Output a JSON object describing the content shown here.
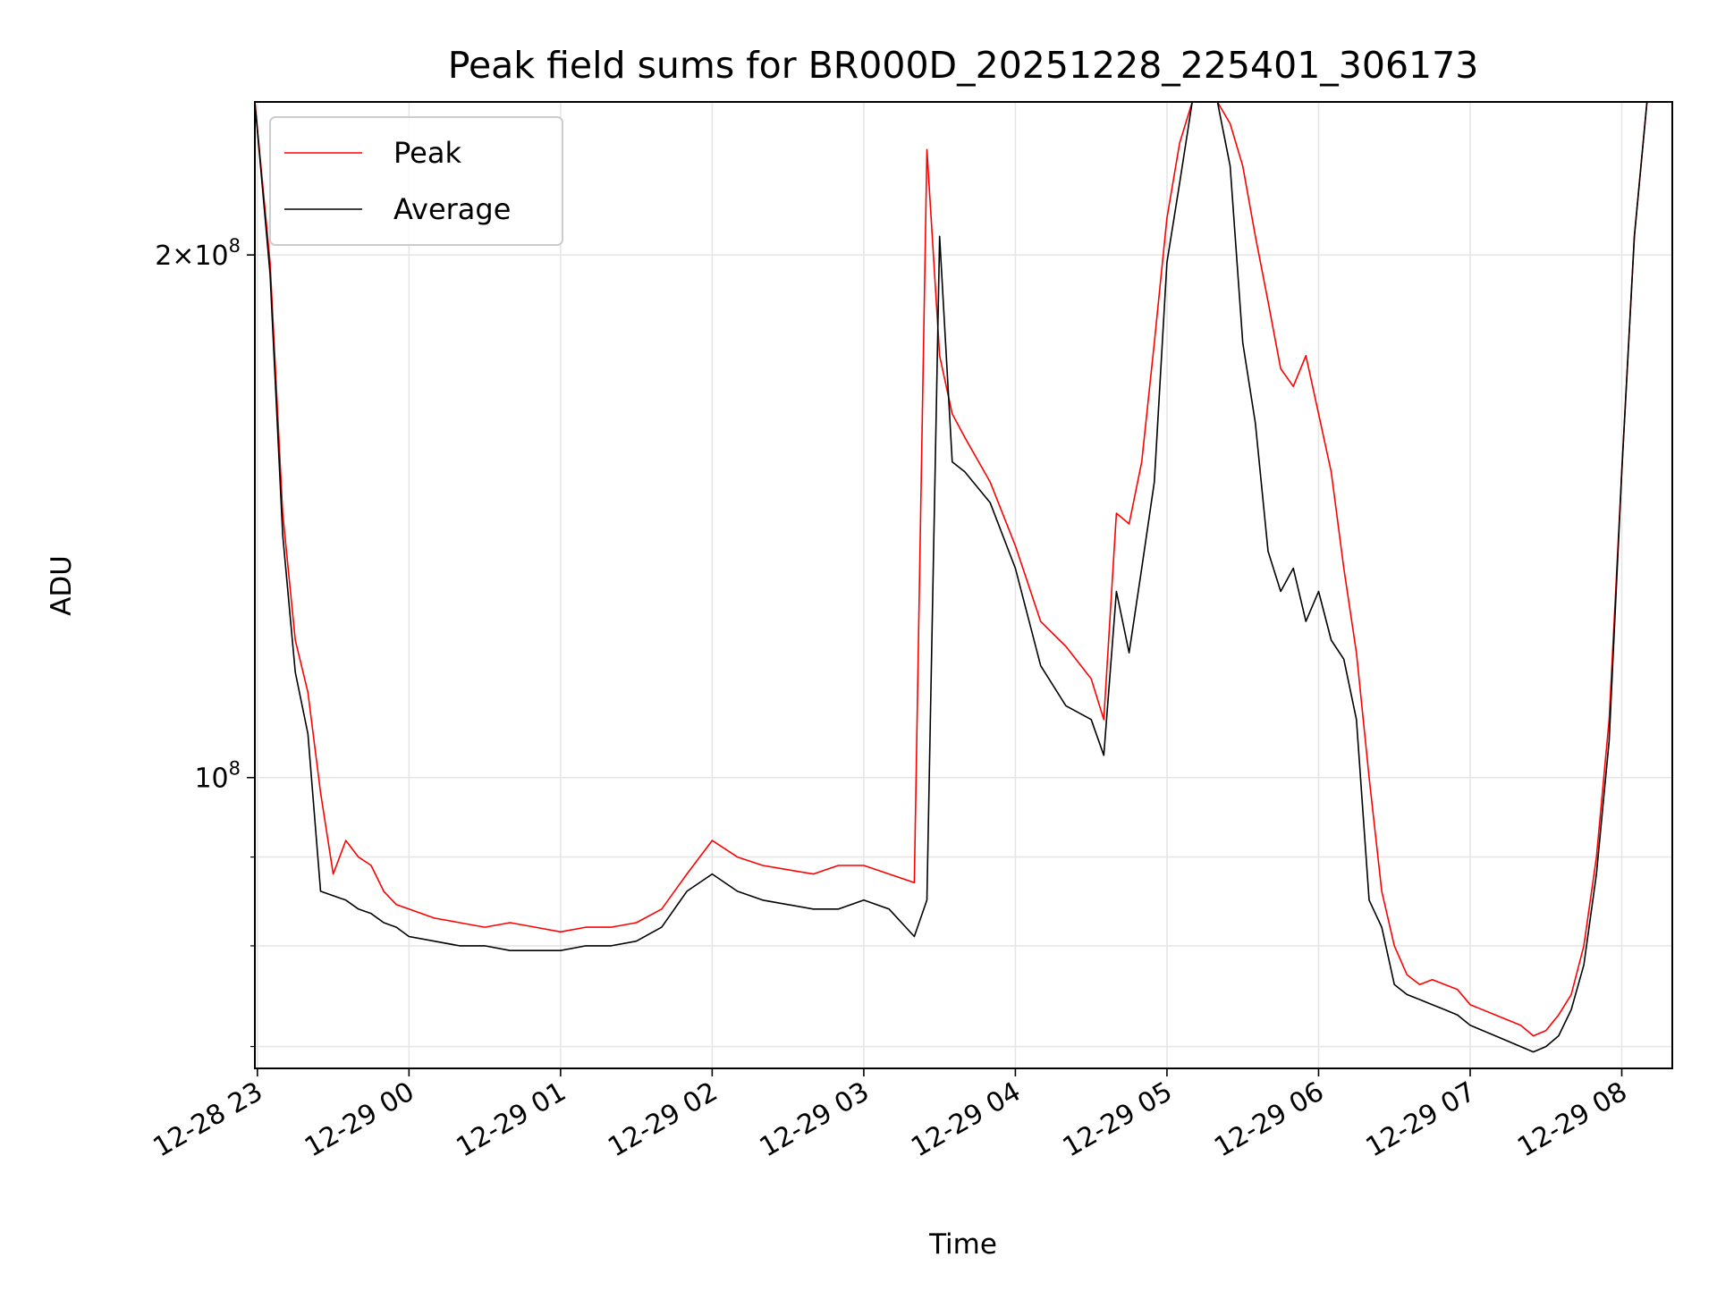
{
  "chart_data": {
    "type": "line",
    "title": "Peak field sums for BR000D_20251228_225401_306173",
    "xlabel": "Time",
    "ylabel": "ADU",
    "x_scale": "time",
    "y_scale": "log",
    "xlim": [
      "2025-12-28 22:59",
      "2025-12-29 08:20"
    ],
    "ylim": [
      68000000,
      245000000
    ],
    "x_ticks": [
      {
        "value": "2025-12-28 23:00",
        "label": "12-28 23"
      },
      {
        "value": "2025-12-29 00:00",
        "label": "12-29 00"
      },
      {
        "value": "2025-12-29 01:00",
        "label": "12-29 01"
      },
      {
        "value": "2025-12-29 02:00",
        "label": "12-29 02"
      },
      {
        "value": "2025-12-29 03:00",
        "label": "12-29 03"
      },
      {
        "value": "2025-12-29 04:00",
        "label": "12-29 04"
      },
      {
        "value": "2025-12-29 05:00",
        "label": "12-29 05"
      },
      {
        "value": "2025-12-29 06:00",
        "label": "12-29 06"
      },
      {
        "value": "2025-12-29 07:00",
        "label": "12-29 07"
      },
      {
        "value": "2025-12-29 08:00",
        "label": "12-29 08"
      }
    ],
    "y_major_ticks": [
      {
        "value": 100000000,
        "base": "10",
        "exp": "8",
        "coef": ""
      },
      {
        "value": 200000000,
        "base": "10",
        "exp": "8",
        "coef": "2"
      }
    ],
    "y_minor_ticks": [
      70000000,
      80000000,
      90000000
    ],
    "grid": true,
    "legend_position": "upper-left",
    "series": [
      {
        "name": "Peak",
        "color": "#ff0000",
        "x": [
          "2025-12-28 22:59",
          "2025-12-28 23:05",
          "2025-12-28 23:10",
          "2025-12-28 23:15",
          "2025-12-28 23:20",
          "2025-12-28 23:25",
          "2025-12-28 23:30",
          "2025-12-28 23:35",
          "2025-12-28 23:40",
          "2025-12-28 23:45",
          "2025-12-28 23:50",
          "2025-12-28 23:55",
          "2025-12-29 00:00",
          "2025-12-29 00:10",
          "2025-12-29 00:20",
          "2025-12-29 00:30",
          "2025-12-29 00:40",
          "2025-12-29 00:50",
          "2025-12-29 01:00",
          "2025-12-29 01:10",
          "2025-12-29 01:20",
          "2025-12-29 01:30",
          "2025-12-29 01:40",
          "2025-12-29 01:50",
          "2025-12-29 02:00",
          "2025-12-29 02:10",
          "2025-12-29 02:20",
          "2025-12-29 02:30",
          "2025-12-29 02:40",
          "2025-12-29 02:50",
          "2025-12-29 03:00",
          "2025-12-29 03:10",
          "2025-12-29 03:20",
          "2025-12-29 03:25",
          "2025-12-29 03:30",
          "2025-12-29 03:35",
          "2025-12-29 03:40",
          "2025-12-29 03:50",
          "2025-12-29 04:00",
          "2025-12-29 04:10",
          "2025-12-29 04:20",
          "2025-12-29 04:30",
          "2025-12-29 04:35",
          "2025-12-29 04:40",
          "2025-12-29 04:45",
          "2025-12-29 04:50",
          "2025-12-29 04:55",
          "2025-12-29 05:00",
          "2025-12-29 05:05",
          "2025-12-29 05:10",
          "2025-12-29 05:15",
          "2025-12-29 05:20",
          "2025-12-29 05:25",
          "2025-12-29 05:30",
          "2025-12-29 05:35",
          "2025-12-29 05:40",
          "2025-12-29 05:45",
          "2025-12-29 05:50",
          "2025-12-29 05:55",
          "2025-12-29 06:00",
          "2025-12-29 06:05",
          "2025-12-29 06:10",
          "2025-12-29 06:15",
          "2025-12-29 06:20",
          "2025-12-29 06:25",
          "2025-12-29 06:30",
          "2025-12-29 06:35",
          "2025-12-29 06:40",
          "2025-12-29 06:45",
          "2025-12-29 06:50",
          "2025-12-29 06:55",
          "2025-12-29 07:00",
          "2025-12-29 07:10",
          "2025-12-29 07:20",
          "2025-12-29 07:25",
          "2025-12-29 07:30",
          "2025-12-29 07:35",
          "2025-12-29 07:40",
          "2025-12-29 07:45",
          "2025-12-29 07:50",
          "2025-12-29 07:55",
          "2025-12-29 08:00",
          "2025-12-29 08:05",
          "2025-12-29 08:10"
        ],
        "values": [
          245000000,
          198000000,
          142000000,
          120000000,
          112000000,
          98000000,
          88000000,
          92000000,
          90000000,
          89000000,
          86000000,
          84500000,
          84000000,
          83000000,
          82500000,
          82000000,
          82500000,
          82000000,
          81500000,
          82000000,
          82000000,
          82500000,
          84000000,
          88000000,
          92000000,
          90000000,
          89000000,
          88500000,
          88000000,
          89000000,
          89000000,
          88000000,
          87000000,
          230000000,
          175000000,
          162000000,
          157000000,
          148000000,
          136000000,
          123000000,
          119000000,
          114000000,
          108000000,
          142000000,
          140000000,
          152000000,
          178000000,
          210000000,
          232000000,
          245000000,
          245000000,
          245000000,
          238000000,
          225000000,
          205000000,
          188000000,
          172000000,
          168000000,
          175000000,
          162000000,
          150000000,
          132000000,
          118000000,
          100000000,
          86000000,
          80000000,
          77000000,
          76000000,
          76500000,
          76000000,
          75500000,
          74000000,
          73000000,
          72000000,
          71000000,
          71500000,
          73000000,
          75000000,
          80000000,
          90000000,
          108000000,
          150000000,
          205000000,
          245000000
        ]
      },
      {
        "name": "Average",
        "color": "#000000",
        "x": [
          "2025-12-28 22:59",
          "2025-12-28 23:05",
          "2025-12-28 23:10",
          "2025-12-28 23:15",
          "2025-12-28 23:20",
          "2025-12-28 23:25",
          "2025-12-28 23:30",
          "2025-12-28 23:35",
          "2025-12-28 23:40",
          "2025-12-28 23:45",
          "2025-12-28 23:50",
          "2025-12-28 23:55",
          "2025-12-29 00:00",
          "2025-12-29 00:10",
          "2025-12-29 00:20",
          "2025-12-29 00:30",
          "2025-12-29 00:40",
          "2025-12-29 00:50",
          "2025-12-29 01:00",
          "2025-12-29 01:10",
          "2025-12-29 01:20",
          "2025-12-29 01:30",
          "2025-12-29 01:40",
          "2025-12-29 01:50",
          "2025-12-29 02:00",
          "2025-12-29 02:10",
          "2025-12-29 02:20",
          "2025-12-29 02:30",
          "2025-12-29 02:40",
          "2025-12-29 02:50",
          "2025-12-29 03:00",
          "2025-12-29 03:10",
          "2025-12-29 03:20",
          "2025-12-29 03:25",
          "2025-12-29 03:30",
          "2025-12-29 03:35",
          "2025-12-29 03:40",
          "2025-12-29 03:50",
          "2025-12-29 04:00",
          "2025-12-29 04:10",
          "2025-12-29 04:20",
          "2025-12-29 04:30",
          "2025-12-29 04:35",
          "2025-12-29 04:40",
          "2025-12-29 04:45",
          "2025-12-29 04:50",
          "2025-12-29 04:55",
          "2025-12-29 05:00",
          "2025-12-29 05:05",
          "2025-12-29 05:10",
          "2025-12-29 05:15",
          "2025-12-29 05:20",
          "2025-12-29 05:25",
          "2025-12-29 05:30",
          "2025-12-29 05:35",
          "2025-12-29 05:40",
          "2025-12-29 05:45",
          "2025-12-29 05:50",
          "2025-12-29 05:55",
          "2025-12-29 06:00",
          "2025-12-29 06:05",
          "2025-12-29 06:10",
          "2025-12-29 06:15",
          "2025-12-29 06:20",
          "2025-12-29 06:25",
          "2025-12-29 06:30",
          "2025-12-29 06:35",
          "2025-12-29 06:40",
          "2025-12-29 06:45",
          "2025-12-29 06:50",
          "2025-12-29 06:55",
          "2025-12-29 07:00",
          "2025-12-29 07:10",
          "2025-12-29 07:20",
          "2025-12-29 07:25",
          "2025-12-29 07:30",
          "2025-12-29 07:35",
          "2025-12-29 07:40",
          "2025-12-29 07:45",
          "2025-12-29 07:50",
          "2025-12-29 07:55",
          "2025-12-29 08:00",
          "2025-12-29 08:05",
          "2025-12-29 08:10"
        ],
        "values": [
          245000000,
          195000000,
          138000000,
          115000000,
          106000000,
          86000000,
          85500000,
          85000000,
          84000000,
          83500000,
          82500000,
          82000000,
          81000000,
          80500000,
          80000000,
          80000000,
          79500000,
          79500000,
          79500000,
          80000000,
          80000000,
          80500000,
          82000000,
          86000000,
          88000000,
          86000000,
          85000000,
          84500000,
          84000000,
          84000000,
          85000000,
          84000000,
          81000000,
          85000000,
          205000000,
          152000000,
          150000000,
          144000000,
          132000000,
          116000000,
          110000000,
          108000000,
          103000000,
          128000000,
          118000000,
          132000000,
          148000000,
          198000000,
          220000000,
          245000000,
          245000000,
          245000000,
          225000000,
          178000000,
          160000000,
          135000000,
          128000000,
          132000000,
          123000000,
          128000000,
          120000000,
          117000000,
          108000000,
          85000000,
          82000000,
          76000000,
          75000000,
          74500000,
          74000000,
          73500000,
          73000000,
          72000000,
          71000000,
          70000000,
          69500000,
          70000000,
          71000000,
          73500000,
          78000000,
          88000000,
          105000000,
          150000000,
          205000000,
          245000000
        ]
      }
    ]
  }
}
